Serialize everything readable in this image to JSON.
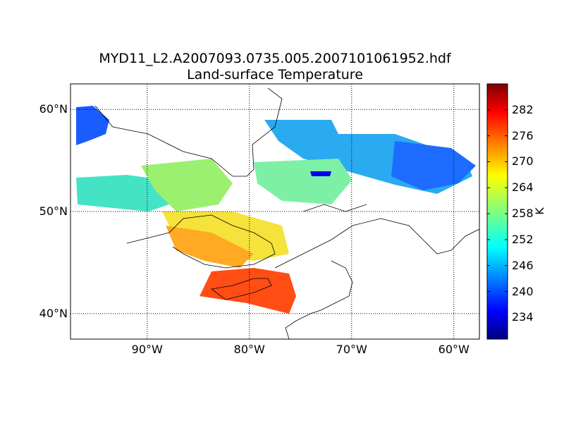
{
  "title": {
    "line1": "MYD11_L2.A2007093.0735.005.2007101061952.hdf",
    "line2": "Land-surface Temperature"
  },
  "map": {
    "lat_labels": [
      "60°N",
      "50°N",
      "40°N"
    ],
    "lat_values": [
      60,
      50,
      40
    ],
    "lon_labels": [
      "90°W",
      "80°W",
      "70°W",
      "60°W"
    ],
    "lon_values": [
      -90,
      -80,
      -70,
      -60
    ],
    "lon_range": [
      -97.5,
      -57.5
    ],
    "lat_range": [
      37.5,
      62.5
    ],
    "gridlines": "dotted"
  },
  "colorbar": {
    "unit": "K",
    "ticks": [
      "282",
      "276",
      "270",
      "264",
      "258",
      "252",
      "246",
      "240",
      "234"
    ],
    "tick_values": [
      282,
      276,
      270,
      264,
      258,
      252,
      246,
      240,
      234
    ],
    "range": [
      229,
      288
    ],
    "colormap": "jet"
  }
}
